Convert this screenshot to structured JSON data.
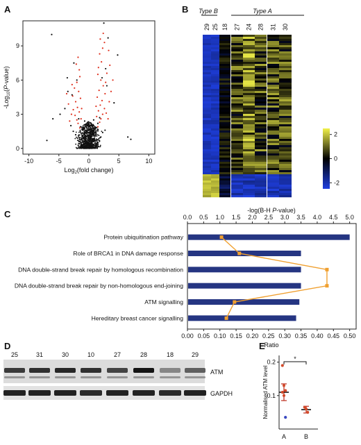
{
  "panels": {
    "a": "A",
    "b": "B",
    "c": "C",
    "d": "D",
    "e": "E"
  },
  "chart_data": [
    {
      "id": "A",
      "type": "scatter",
      "title": "",
      "xlabel": "Log2(fold change)",
      "ylabel": "-Log10(P-value)",
      "xlim": [
        -11,
        11
      ],
      "ylim": [
        -0.5,
        11.2
      ],
      "x_ticks": [
        "-10",
        "-5",
        "0",
        "5",
        "10"
      ],
      "y_ticks": [
        "0",
        "3",
        "6",
        "9"
      ],
      "series": [
        {
          "color": "#111111",
          "points": [
            [
              -0.2,
              0.05
            ],
            [
              0.3,
              0.1
            ],
            [
              -0.6,
              0.2
            ],
            [
              0.7,
              0.15
            ],
            [
              -1.0,
              0.3
            ],
            [
              1.1,
              0.25
            ],
            [
              -0.4,
              0.5
            ],
            [
              0.5,
              0.6
            ],
            [
              -1.3,
              0.4
            ],
            [
              1.4,
              0.5
            ],
            [
              -0.8,
              0.8
            ],
            [
              0.9,
              0.9
            ],
            [
              -1.6,
              0.6
            ],
            [
              1.7,
              0.7
            ],
            [
              -0.1,
              1.0
            ],
            [
              0.2,
              1.2
            ],
            [
              -1.1,
              1.1
            ],
            [
              1.2,
              1.3
            ],
            [
              -0.5,
              1.4
            ],
            [
              0.6,
              1.5
            ],
            [
              -1.9,
              0.9
            ],
            [
              2.0,
              1.0
            ],
            [
              -0.9,
              1.7
            ],
            [
              1.0,
              1.8
            ],
            [
              -0.3,
              2.0
            ],
            [
              0.4,
              2.1
            ],
            [
              -2.2,
              1.2
            ],
            [
              2.3,
              1.4
            ],
            [
              -1.4,
              1.9
            ],
            [
              1.5,
              2.2
            ],
            [
              -0.7,
              2.4
            ],
            [
              0.8,
              2.5
            ],
            [
              -2.6,
              1.5
            ],
            [
              2.7,
              1.6
            ],
            [
              -1.7,
              2.6
            ],
            [
              1.8,
              2.7
            ],
            [
              -6.2,
              10.0
            ],
            [
              -3.0,
              2.0
            ],
            [
              -4.0,
              3.5
            ],
            [
              -4.8,
              3.0
            ],
            [
              -6.0,
              2.6
            ],
            [
              -3.5,
              5.0
            ],
            [
              -2.8,
              4.7
            ],
            [
              3.0,
              5.5
            ],
            [
              2.8,
              7.0
            ],
            [
              4.2,
              4.0
            ],
            [
              4.8,
              8.2
            ],
            [
              3.2,
              9.7
            ],
            [
              2.5,
              11.0
            ],
            [
              6.5,
              1.0
            ],
            [
              7.0,
              0.8
            ],
            [
              -7.0,
              0.7
            ],
            [
              -2.0,
              6.0
            ],
            [
              -2.5,
              7.5
            ],
            [
              -3.6,
              6.2
            ],
            [
              2.2,
              6.2
            ]
          ]
        },
        {
          "color": "#e0301e",
          "points": [
            [
              -1.5,
              1.8
            ],
            [
              -1.8,
              2.2
            ],
            [
              -2.0,
              2.5
            ],
            [
              -2.3,
              2.9
            ],
            [
              -1.6,
              3.2
            ],
            [
              -2.6,
              3.4
            ],
            [
              -1.9,
              3.6
            ],
            [
              -2.2,
              4.1
            ],
            [
              -1.4,
              4.4
            ],
            [
              -2.7,
              4.6
            ],
            [
              -1.7,
              5.0
            ],
            [
              -2.4,
              5.3
            ],
            [
              -2.0,
              5.8
            ],
            [
              -1.5,
              6.3
            ],
            [
              -2.9,
              3.0
            ],
            [
              -3.2,
              2.4
            ],
            [
              -1.3,
              2.6
            ],
            [
              -1.2,
              3.5
            ],
            [
              -2.8,
              5.6
            ],
            [
              -3.4,
              3.9
            ],
            [
              -1.6,
              6.9
            ],
            [
              -2.1,
              7.4
            ],
            [
              -3.7,
              4.8
            ],
            [
              -1.8,
              8.0
            ],
            [
              1.5,
              1.9
            ],
            [
              1.8,
              2.3
            ],
            [
              2.0,
              2.6
            ],
            [
              2.3,
              3.0
            ],
            [
              1.6,
              3.3
            ],
            [
              2.6,
              3.5
            ],
            [
              1.9,
              3.8
            ],
            [
              2.2,
              4.2
            ],
            [
              1.4,
              4.5
            ],
            [
              2.7,
              4.8
            ],
            [
              1.7,
              5.1
            ],
            [
              2.4,
              5.5
            ],
            [
              2.0,
              6.0
            ],
            [
              1.5,
              6.5
            ],
            [
              2.9,
              3.1
            ],
            [
              3.2,
              2.6
            ],
            [
              1.3,
              2.8
            ],
            [
              1.2,
              3.7
            ],
            [
              2.8,
              5.8
            ],
            [
              3.4,
              4.1
            ],
            [
              1.6,
              7.1
            ],
            [
              2.1,
              7.6
            ],
            [
              3.7,
              5.0
            ],
            [
              1.8,
              8.3
            ],
            [
              2.3,
              8.8
            ],
            [
              3.0,
              6.6
            ],
            [
              2.6,
              9.3
            ],
            [
              3.5,
              7.3
            ],
            [
              1.9,
              9.6
            ],
            [
              4.0,
              6.0
            ],
            [
              2.4,
              10.1
            ],
            [
              3.3,
              8.6
            ]
          ]
        }
      ]
    },
    {
      "id": "B",
      "type": "heatmap",
      "group_labels": [
        "Type B",
        "Type A"
      ],
      "columns": [
        "29",
        "25",
        "18",
        "27",
        "24",
        "28",
        "31",
        "30"
      ],
      "colorbar_ticks": [
        "2",
        "0",
        "-2"
      ],
      "colorbar_range": [
        -2.5,
        2.5
      ],
      "color_scale": {
        "low": "#1f3fe0",
        "mid": "#000000",
        "high": "#f2f24a"
      }
    },
    {
      "id": "C",
      "type": "bar",
      "orientation": "horizontal",
      "categories": [
        "Protein ubiquitination pathway",
        "Role of BRCA1 in DNA damage response",
        "DNA double-strand break repair by homologous recombination",
        "DNA double-strand break repair by non-homologous end-joining",
        "ATM signalling",
        "Hereditary breast cancer signalling"
      ],
      "series": [
        {
          "name": "",
          "axis": "bottom",
          "values": [
            0.5,
            0.35,
            0.35,
            0.35,
            0.345,
            0.335
          ],
          "color": "#253582"
        },
        {
          "name": "",
          "axis": "top",
          "type": "line",
          "values": [
            1.05,
            1.6,
            4.3,
            4.3,
            1.45,
            1.2
          ],
          "color": "#f0a030"
        }
      ],
      "xlabel": "Ratio",
      "x2label": "-log(B-H P-value)",
      "xlim": [
        0,
        0.52
      ],
      "x2lim": [
        0,
        5.2
      ],
      "x_ticks": [
        "0.00",
        "0.05",
        "0.10",
        "0.15",
        "0.20",
        "0.25",
        "0.30",
        "0.35",
        "0.40",
        "0.45",
        "0.50"
      ],
      "x2_ticks": [
        "0.0",
        "0.5",
        "1.0",
        "1.5",
        "2.0",
        "2.5",
        "3.0",
        "3.5",
        "4.0",
        "4.5",
        "5.0"
      ]
    },
    {
      "id": "D",
      "type": "table",
      "lanes": [
        "25",
        "31",
        "30",
        "10",
        "27",
        "28",
        "18",
        "29"
      ],
      "bands": [
        "ATM",
        "GAPDH"
      ],
      "atm_intensity": [
        0.75,
        0.8,
        0.85,
        0.8,
        0.7,
        0.95,
        0.35,
        0.55
      ],
      "gapdh_intensity": [
        0.9,
        0.9,
        0.9,
        0.85,
        0.9,
        0.9,
        0.85,
        0.9
      ]
    },
    {
      "id": "E",
      "type": "scatter",
      "categories": [
        "A",
        "B"
      ],
      "ylabel": "Normalised ATM level",
      "y_ticks": [
        "0.1",
        "0.2"
      ],
      "ylim": [
        0,
        0.22
      ],
      "significance": "*",
      "groups": [
        {
          "name": "A",
          "points": [
            0.19,
            0.13,
            0.115,
            0.11,
            0.1,
            0.035
          ],
          "mean": 0.11,
          "sem_low": 0.085,
          "sem_high": 0.135
        },
        {
          "name": "B",
          "points": [
            0.065,
            0.06,
            0.05
          ],
          "mean": 0.058,
          "sem_low": 0.048,
          "sem_high": 0.068
        }
      ]
    }
  ]
}
